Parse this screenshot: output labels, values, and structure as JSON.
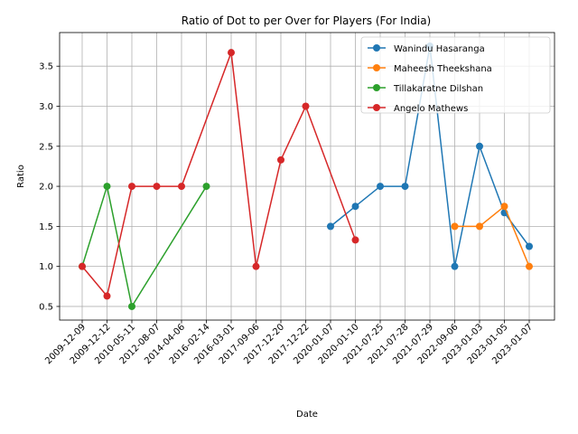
{
  "chart_data": {
    "type": "line",
    "title": "Ratio of Dot to per Over for Players (For India)",
    "xlabel": "Date",
    "ylabel": "Ratio",
    "categories": [
      "2009-12-09",
      "2009-12-12",
      "2010-05-11",
      "2012-08-07",
      "2014-04-06",
      "2016-02-14",
      "2016-03-01",
      "2017-09-06",
      "2017-12-20",
      "2017-12-22",
      "2020-01-07",
      "2020-01-10",
      "2021-07-25",
      "2021-07-28",
      "2021-07-29",
      "2022-09-06",
      "2023-01-03",
      "2023-01-05",
      "2023-01-07"
    ],
    "ylim": [
      0.33,
      3.92
    ],
    "yticks": [
      0.5,
      1.0,
      1.5,
      2.0,
      2.5,
      3.0,
      3.5
    ],
    "ytick_labels": [
      "0.5",
      "1.0",
      "1.5",
      "2.0",
      "2.5",
      "3.0",
      "3.5"
    ],
    "grid": true,
    "legend_position": "top-right",
    "series": [
      {
        "name": "Wanindu Hasaranga",
        "color": "#1f77b4",
        "points": [
          [
            "2020-01-07",
            1.5
          ],
          [
            "2020-01-10",
            1.75
          ],
          [
            "2021-07-25",
            2.0
          ],
          [
            "2021-07-28",
            2.0
          ],
          [
            "2021-07-29",
            3.75
          ],
          [
            "2022-09-06",
            1.0
          ],
          [
            "2023-01-03",
            2.5
          ],
          [
            "2023-01-05",
            1.67
          ],
          [
            "2023-01-07",
            1.25
          ]
        ]
      },
      {
        "name": "Maheesh Theekshana",
        "color": "#ff7f0e",
        "points": [
          [
            "2022-09-06",
            1.5
          ],
          [
            "2023-01-03",
            1.5
          ],
          [
            "2023-01-05",
            1.75
          ],
          [
            "2023-01-07",
            1.0
          ]
        ]
      },
      {
        "name": "Tillakaratne Dilshan",
        "color": "#2ca02c",
        "points": [
          [
            "2009-12-09",
            1.0
          ],
          [
            "2009-12-12",
            2.0
          ],
          [
            "2010-05-11",
            0.5
          ],
          [
            "2016-02-14",
            2.0
          ]
        ]
      },
      {
        "name": "Angelo Mathews",
        "color": "#d62728",
        "points": [
          [
            "2009-12-09",
            1.0
          ],
          [
            "2009-12-12",
            0.63
          ],
          [
            "2010-05-11",
            2.0
          ],
          [
            "2012-08-07",
            2.0
          ],
          [
            "2014-04-06",
            2.0
          ],
          [
            "2016-03-01",
            3.67
          ],
          [
            "2017-09-06",
            1.0
          ],
          [
            "2017-12-20",
            2.33
          ],
          [
            "2017-12-22",
            3.0
          ],
          [
            "2020-01-10",
            1.33
          ]
        ]
      }
    ]
  }
}
